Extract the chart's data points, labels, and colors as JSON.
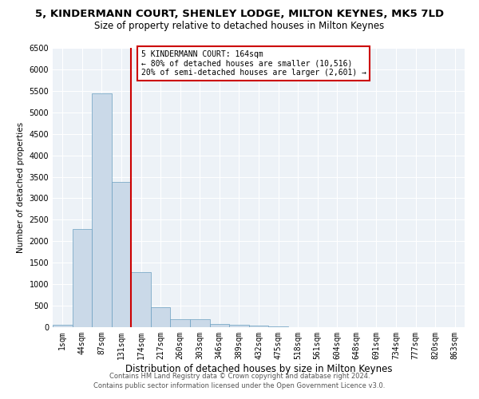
{
  "title": "5, KINDERMANN COURT, SHENLEY LODGE, MILTON KEYNES, MK5 7LD",
  "subtitle": "Size of property relative to detached houses in Milton Keynes",
  "xlabel": "Distribution of detached houses by size in Milton Keynes",
  "ylabel": "Number of detached properties",
  "bin_labels": [
    "1sqm",
    "44sqm",
    "87sqm",
    "131sqm",
    "174sqm",
    "217sqm",
    "260sqm",
    "303sqm",
    "346sqm",
    "389sqm",
    "432sqm",
    "475sqm",
    "518sqm",
    "561sqm",
    "604sqm",
    "648sqm",
    "691sqm",
    "734sqm",
    "777sqm",
    "820sqm",
    "863sqm"
  ],
  "bar_values": [
    55,
    2280,
    5450,
    3380,
    1290,
    465,
    195,
    185,
    75,
    55,
    28,
    18,
    8,
    8,
    4,
    4,
    4,
    4,
    4,
    4,
    4
  ],
  "bar_color": "#cad9e8",
  "bar_edge_color": "#6a9fc0",
  "vline_color": "#cc0000",
  "annotation_text": "5 KINDERMANN COURT: 164sqm\n← 80% of detached houses are smaller (10,516)\n20% of semi-detached houses are larger (2,601) →",
  "annotation_box_color": "#cc0000",
  "ylim": [
    0,
    6500
  ],
  "yticks": [
    0,
    500,
    1000,
    1500,
    2000,
    2500,
    3000,
    3500,
    4000,
    4500,
    5000,
    5500,
    6000,
    6500
  ],
  "bg_color": "#edf2f7",
  "grid_color": "#ffffff",
  "footer_text": "Contains HM Land Registry data © Crown copyright and database right 2024.\nContains public sector information licensed under the Open Government Licence v3.0.",
  "title_fontsize": 9.5,
  "subtitle_fontsize": 8.5,
  "xlabel_fontsize": 8.5,
  "ylabel_fontsize": 7.5,
  "tick_fontsize": 7,
  "annotation_fontsize": 7,
  "footer_fontsize": 6
}
